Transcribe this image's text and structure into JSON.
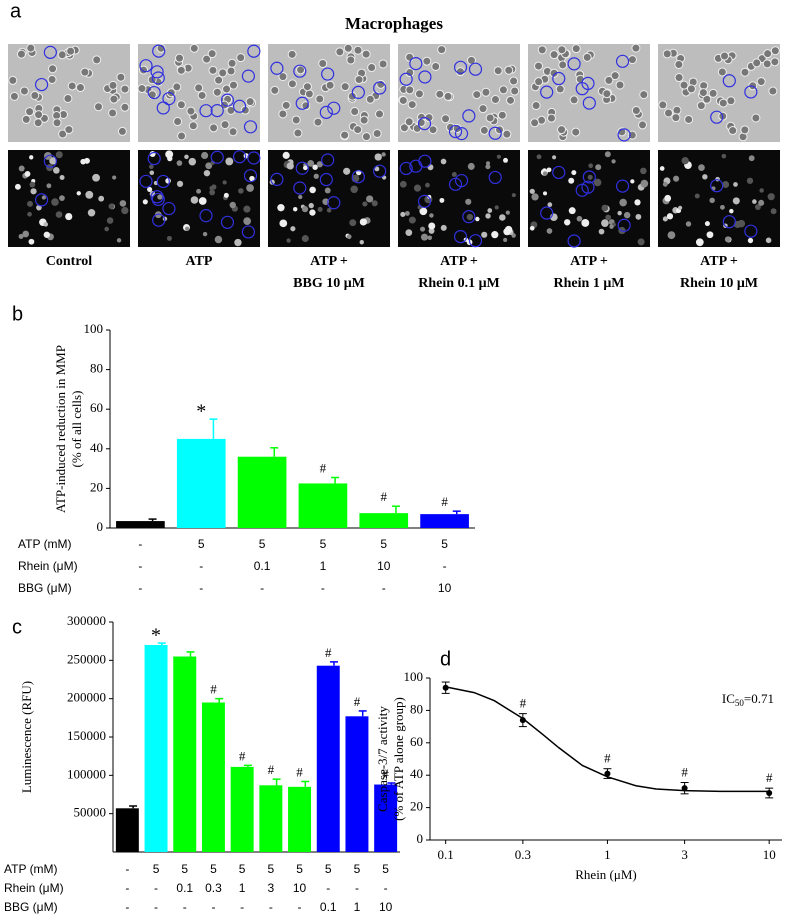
{
  "panel_a": {
    "letter": "a",
    "title": "Macrophages",
    "labels": [
      [
        "Control"
      ],
      [
        "ATP"
      ],
      [
        "ATP +",
        "BBG 10 μM"
      ],
      [
        "ATP +",
        "Rhein 0.1 μM"
      ],
      [
        "ATP +",
        "Rhein 1 μM"
      ],
      [
        "ATP +",
        "Rhein 10 μM"
      ]
    ]
  },
  "chart_data": [
    {
      "type": "bar",
      "letter": "b",
      "ylabel": [
        "ATP-induced reduction in MMP",
        "(% of all cells)"
      ],
      "values": [
        3.5,
        45,
        36,
        22.5,
        7.5,
        7
      ],
      "errors": [
        1,
        10,
        4.5,
        3,
        3.5,
        1.5
      ],
      "colors": [
        "#000000",
        "#00ffff",
        "#00ff00",
        "#00ff00",
        "#00ff00",
        "#0000ff"
      ],
      "markers": [
        null,
        "*",
        null,
        "#",
        "#",
        "#"
      ],
      "ylim": [
        0,
        100
      ],
      "yticks": [
        0,
        20,
        40,
        60,
        80,
        100
      ],
      "conditions": [
        {
          "name": "ATP (mM)",
          "values": [
            "-",
            "5",
            "5",
            "5",
            "5",
            "5"
          ]
        },
        {
          "name": "Rhein (μM)",
          "values": [
            "-",
            "-",
            "0.1",
            "1",
            "10",
            "-"
          ]
        },
        {
          "name": "BBG (μM)",
          "values": [
            "-",
            "-",
            "-",
            "-",
            "-",
            "10"
          ]
        }
      ]
    },
    {
      "type": "bar",
      "letter": "c",
      "ylabel": [
        "Luminescence (RFU)"
      ],
      "values": [
        57000,
        270000,
        255000,
        195000,
        111000,
        87000,
        85000,
        243000,
        177000,
        88000
      ],
      "errors": [
        3000,
        2500,
        6000,
        5000,
        2000,
        8000,
        7000,
        5000,
        7000,
        2000
      ],
      "colors": [
        "#000000",
        "#00ffff",
        "#00ff00",
        "#00ff00",
        "#00ff00",
        "#00ff00",
        "#00ff00",
        "#0000ff",
        "#0000ff",
        "#0000ff"
      ],
      "markers": [
        null,
        "*",
        null,
        "#",
        "#",
        "#",
        "#",
        "#",
        "#",
        "#"
      ],
      "ylim": [
        0,
        300000
      ],
      "yticks": [
        50000,
        100000,
        150000,
        200000,
        250000,
        300000
      ],
      "conditions": [
        {
          "name": "ATP (mM)",
          "values": [
            "-",
            "5",
            "5",
            "5",
            "5",
            "5",
            "5",
            "5",
            "5",
            "5"
          ]
        },
        {
          "name": "Rhein (μM)",
          "values": [
            "-",
            "-",
            "0.1",
            "0.3",
            "1",
            "3",
            "10",
            "-",
            "-",
            "-"
          ]
        },
        {
          "name": "BBG (μM)",
          "values": [
            "-",
            "-",
            "-",
            "-",
            "-",
            "-",
            "-",
            "0.1",
            "1",
            "10"
          ]
        }
      ]
    },
    {
      "type": "scatter",
      "letter": "d",
      "ylabel": [
        "Caspase-3/7 activity",
        "(% of ATP alone group)"
      ],
      "xlabel": "Rhein (μM)",
      "x": [
        0.1,
        0.3,
        1,
        3,
        10
      ],
      "values": [
        94,
        74,
        41,
        32,
        29
      ],
      "errors": [
        3.5,
        4,
        3,
        3.5,
        3
      ],
      "markers": [
        null,
        "#",
        "#",
        "#",
        "#"
      ],
      "fit": {
        "x": [
          0.1,
          0.15,
          0.2,
          0.3,
          0.4,
          0.5,
          0.7,
          1,
          1.5,
          2,
          3,
          5,
          10
        ],
        "values": [
          94.5,
          91,
          86,
          75,
          65,
          57,
          46,
          39,
          33.5,
          31.5,
          30.5,
          30,
          30
        ]
      },
      "annotation": [
        "IC",
        "50",
        "=0.71"
      ],
      "xscale": "log",
      "xlim": [
        0.08,
        12
      ],
      "xticks": [
        0.1,
        0.3,
        1,
        3,
        10
      ],
      "ylim": [
        0,
        100
      ],
      "yticks": [
        0,
        20,
        40,
        60,
        80,
        100
      ]
    }
  ]
}
